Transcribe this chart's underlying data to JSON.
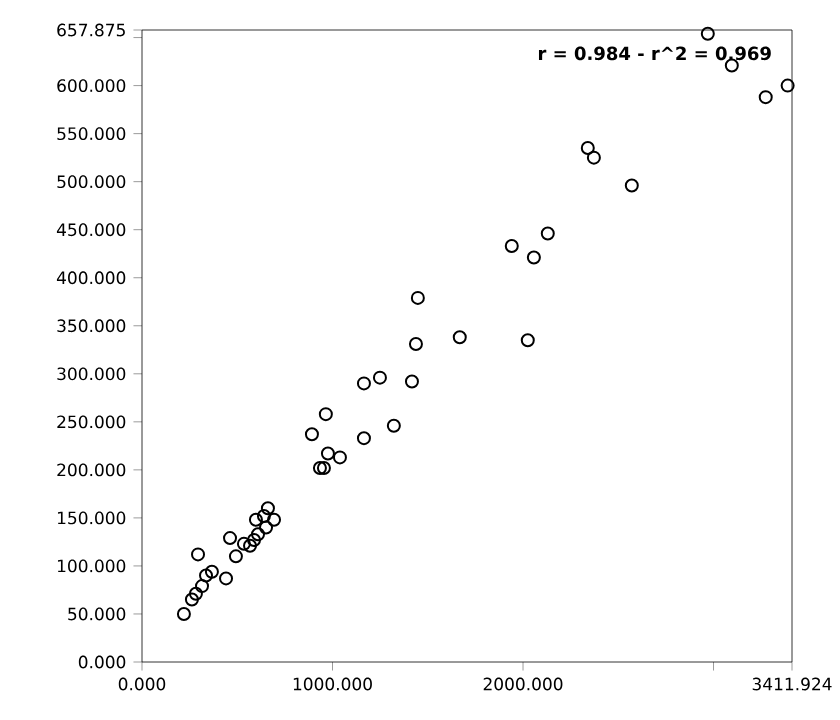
{
  "chart_data": {
    "type": "scatter",
    "annotations": [
      "r = 0.984 - r^2 = 0.969"
    ],
    "xlim": [
      0,
      3411.924
    ],
    "ylim": [
      0,
      657.875
    ],
    "xticks": [
      {
        "value": 0,
        "label": "0.000"
      },
      {
        "value": 1000,
        "label": "1000.000"
      },
      {
        "value": 2000,
        "label": "2000.000"
      },
      {
        "value": 3000,
        "label": null
      },
      {
        "value": 3411.924,
        "label": "3411.924"
      }
    ],
    "yticks": [
      {
        "value": 0,
        "label": "0.000"
      },
      {
        "value": 50,
        "label": "50.000"
      },
      {
        "value": 100,
        "label": "100.000"
      },
      {
        "value": 150,
        "label": "150.000"
      },
      {
        "value": 200,
        "label": "200.000"
      },
      {
        "value": 250,
        "label": "250.000"
      },
      {
        "value": 300,
        "label": "300.000"
      },
      {
        "value": 350,
        "label": "350.000"
      },
      {
        "value": 400,
        "label": "400.000"
      },
      {
        "value": 450,
        "label": "450.000"
      },
      {
        "value": 500,
        "label": "500.000"
      },
      {
        "value": 550,
        "label": "550.000"
      },
      {
        "value": 600,
        "label": "600.000"
      },
      {
        "value": 650,
        "label": null
      },
      {
        "value": 657.875,
        "label": "657.875"
      }
    ],
    "marker": "circle",
    "series": [
      {
        "color": "#000000",
        "x": [
          220,
          262,
          283,
          315,
          336,
          367,
          294,
          441,
          462,
          493,
          535,
          567,
          588,
          609,
          598,
          640,
          661,
          693,
          651,
          934,
          955,
          976,
          1039,
          892,
          965,
          1165,
          1322,
          1165,
          1249,
          1417,
          1438,
          1448,
          1668,
          2025,
          1941,
          2057,
          2130,
          2340,
          2372,
          2571,
          2970,
          3096,
          3274,
          3389
        ],
        "values": [
          50,
          65,
          71,
          79,
          90,
          94,
          112,
          87,
          129,
          110,
          123,
          121,
          127,
          133,
          148,
          152,
          160,
          148,
          140,
          202,
          202,
          217,
          213,
          237,
          258,
          233,
          246,
          290,
          296,
          292,
          331,
          379,
          338,
          335,
          433,
          421,
          446,
          535,
          525,
          496,
          654,
          621,
          588,
          600
        ]
      }
    ]
  }
}
